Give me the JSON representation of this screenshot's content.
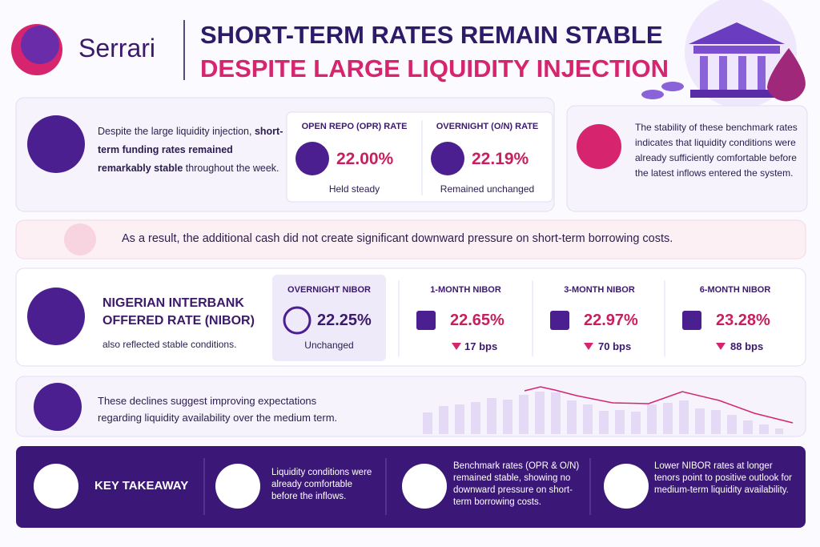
{
  "header": {
    "brand": "Serrari",
    "title_line1": "SHORT-TERM RATES REMAIN STABLE",
    "title_line2": "DESPITE LARGE LIQUIDITY INJECTION"
  },
  "intro": {
    "lead": "Despite the large liquidity injection, ",
    "bold": "short-term funding rates remained remarkably stable",
    "tail": " throughout the week."
  },
  "rates": [
    {
      "label": "OPEN REPO (OPR) RATE",
      "rate": "22.00%",
      "note": "Held steady"
    },
    {
      "label": "OVERNIGHT (O/N) RATE",
      "rate": "22.19%",
      "note": "Remained unchanged"
    }
  ],
  "stability_note": "The stability of these benchmark rates indicates that liquidity conditions were already sufficiently comfortable before the latest inflows entered the system.",
  "result_banner": "As a result, the additional cash did not create significant downward pressure on short-term borrowing costs.",
  "nibor": {
    "title": "NIGERIAN INTERBANK OFFERED RATE (NIBOR)",
    "subtitle": "also reflected stable conditions.",
    "overnight": {
      "label": "OVERNIGHT NIBOR",
      "rate": "22.25%",
      "change": "Unchanged"
    },
    "tenors": [
      {
        "label": "1-MONTH NIBOR",
        "rate": "22.65%",
        "change": "17 bps"
      },
      {
        "label": "3-MONTH NIBOR",
        "rate": "22.97%",
        "change": "70 bps"
      },
      {
        "label": "6-MONTH NIBOR",
        "rate": "23.28%",
        "change": "88 bps"
      }
    ]
  },
  "expectations": "These declines suggest improving expectations regarding liquidity availability over the medium term.",
  "takeaway": {
    "title": "KEY TAKEAWAY",
    "points": [
      "Liquidity conditions were already comfortable before the inflows.",
      "Benchmark rates (OPR & O/N) remained stable, showing no downward pressure on short-term borrowing costs.",
      "Lower NIBOR rates at longer tenors point to positive outlook for medium-term liquidity availability."
    ]
  }
}
